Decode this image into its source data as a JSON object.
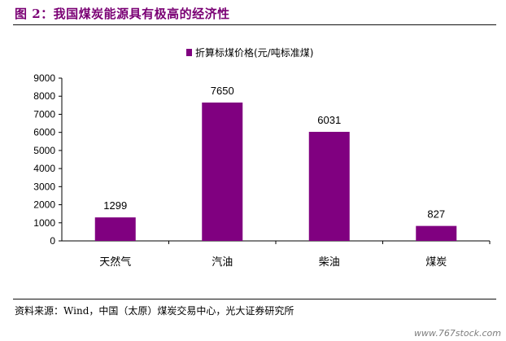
{
  "figure": {
    "title": "图 2：我国煤炭能源具有极高的经济性",
    "source": "资料来源：Wind，中国（太原）煤炭交易中心，光大证券研究所",
    "watermark": "www.767stock.com"
  },
  "chart_data": {
    "type": "bar",
    "title": "",
    "xlabel": "",
    "ylabel": "",
    "categories": [
      "天然气",
      "汽油",
      "柴油",
      "煤炭"
    ],
    "series": [
      {
        "name": "折算标煤价格(元/吨标准煤)",
        "values": [
          1299,
          7650,
          6031,
          827
        ],
        "color": "#800080"
      }
    ],
    "data_labels": [
      "1299",
      "7650",
      "6031",
      "827"
    ],
    "ylim": [
      0,
      9000
    ],
    "yticks": [
      0,
      1000,
      2000,
      3000,
      4000,
      5000,
      6000,
      7000,
      8000,
      9000
    ],
    "ytick_labels": [
      "0",
      "1000",
      "2000",
      "3000",
      "4000",
      "5000",
      "6000",
      "7000",
      "8000",
      "9000"
    ],
    "grid": false,
    "legend_position": "top-center"
  }
}
